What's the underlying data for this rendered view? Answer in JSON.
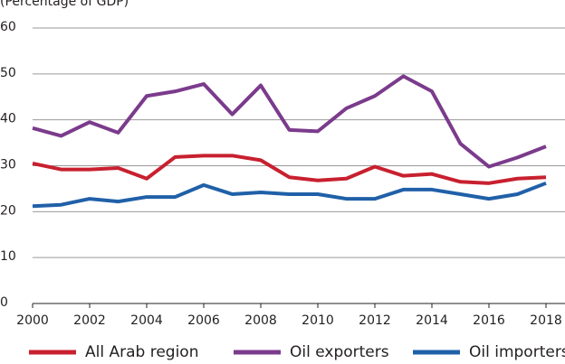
{
  "chart_data": {
    "type": "line",
    "subtitle": "(Percentage of GDP)",
    "x": [
      2000,
      2001,
      2002,
      2003,
      2004,
      2005,
      2006,
      2007,
      2008,
      2009,
      2010,
      2011,
      2012,
      2013,
      2014,
      2015,
      2016,
      2017,
      2018
    ],
    "xlim": [
      2000,
      2018
    ],
    "xticks": [
      2000,
      2002,
      2004,
      2006,
      2008,
      2010,
      2012,
      2014,
      2016,
      2018
    ],
    "ylim": [
      0,
      60
    ],
    "yticks": [
      0,
      10,
      20,
      30,
      40,
      50,
      60
    ],
    "grid": true,
    "legend": "bottom",
    "series": [
      {
        "name": "All Arab region",
        "color": "#c8202f",
        "values": [
          30.5,
          29.2,
          29.2,
          29.5,
          27.2,
          31.9,
          32.2,
          32.2,
          31.2,
          27.5,
          26.8,
          27.2,
          29.8,
          27.8,
          28.2,
          26.5,
          26.2,
          27.2,
          27.5
        ]
      },
      {
        "name": "Oil exporters",
        "color": "#7b3b8c",
        "values": [
          38.2,
          36.5,
          39.5,
          37.2,
          45.2,
          46.2,
          47.8,
          41.2,
          47.5,
          37.8,
          37.5,
          42.5,
          45.2,
          49.5,
          46.2,
          34.8,
          29.8,
          31.8,
          34.2
        ]
      },
      {
        "name": "Oil importers",
        "color": "#2060a8",
        "values": [
          21.2,
          21.5,
          22.8,
          22.2,
          23.2,
          23.2,
          25.8,
          23.8,
          24.2,
          23.8,
          23.8,
          22.8,
          22.8,
          24.8,
          24.8,
          23.8,
          22.8,
          23.8,
          26.2
        ]
      }
    ]
  }
}
